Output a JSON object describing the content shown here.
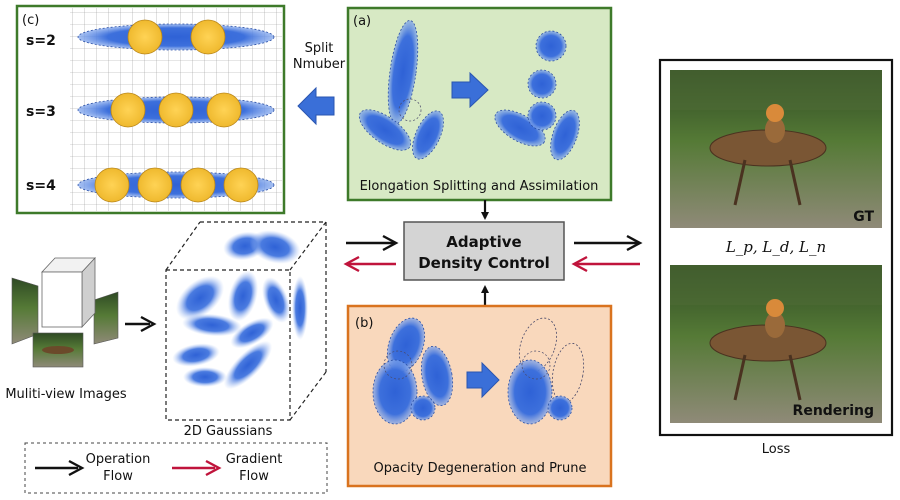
{
  "panel_c": {
    "tag": "(c)",
    "rows": [
      {
        "label": "s=2",
        "splits": 2
      },
      {
        "label": "s=3",
        "splits": 3
      },
      {
        "label": "s=4",
        "splits": 4
      }
    ]
  },
  "split_number": {
    "line1": "Split",
    "line2": "Nmuber"
  },
  "panel_a": {
    "tag": "(a)",
    "caption": "Elongation Splitting and Assimilation"
  },
  "panel_b": {
    "tag": "(b)",
    "caption": "Opacity Degeneration and Prune"
  },
  "adaptive": {
    "line1": "Adaptive",
    "line2": "Density Control"
  },
  "inputs": {
    "multiview": "Muliti-view Images",
    "gaussians": "2D Gaussians"
  },
  "loss_panel": {
    "gt_label": "GT",
    "render_label": "Rendering",
    "loss_formula": "L_p, L_d, L_n",
    "caption": "Loss"
  },
  "legend": {
    "operation_line1": "Operation",
    "operation_line2": "Flow",
    "gradient_line1": "Gradient",
    "gradient_line2": "Flow"
  },
  "colors": {
    "gaussian_blue": "#3a6fd8",
    "sphere_yellow": "#f2c33c",
    "panel_a_fill": "#d7e9c4",
    "panel_a_border": "#3e7a2a",
    "panel_b_fill": "#f9d8bc",
    "panel_b_border": "#d9731f",
    "gradient_red": "#c0143c",
    "box_gray": "#d4d4d4"
  }
}
